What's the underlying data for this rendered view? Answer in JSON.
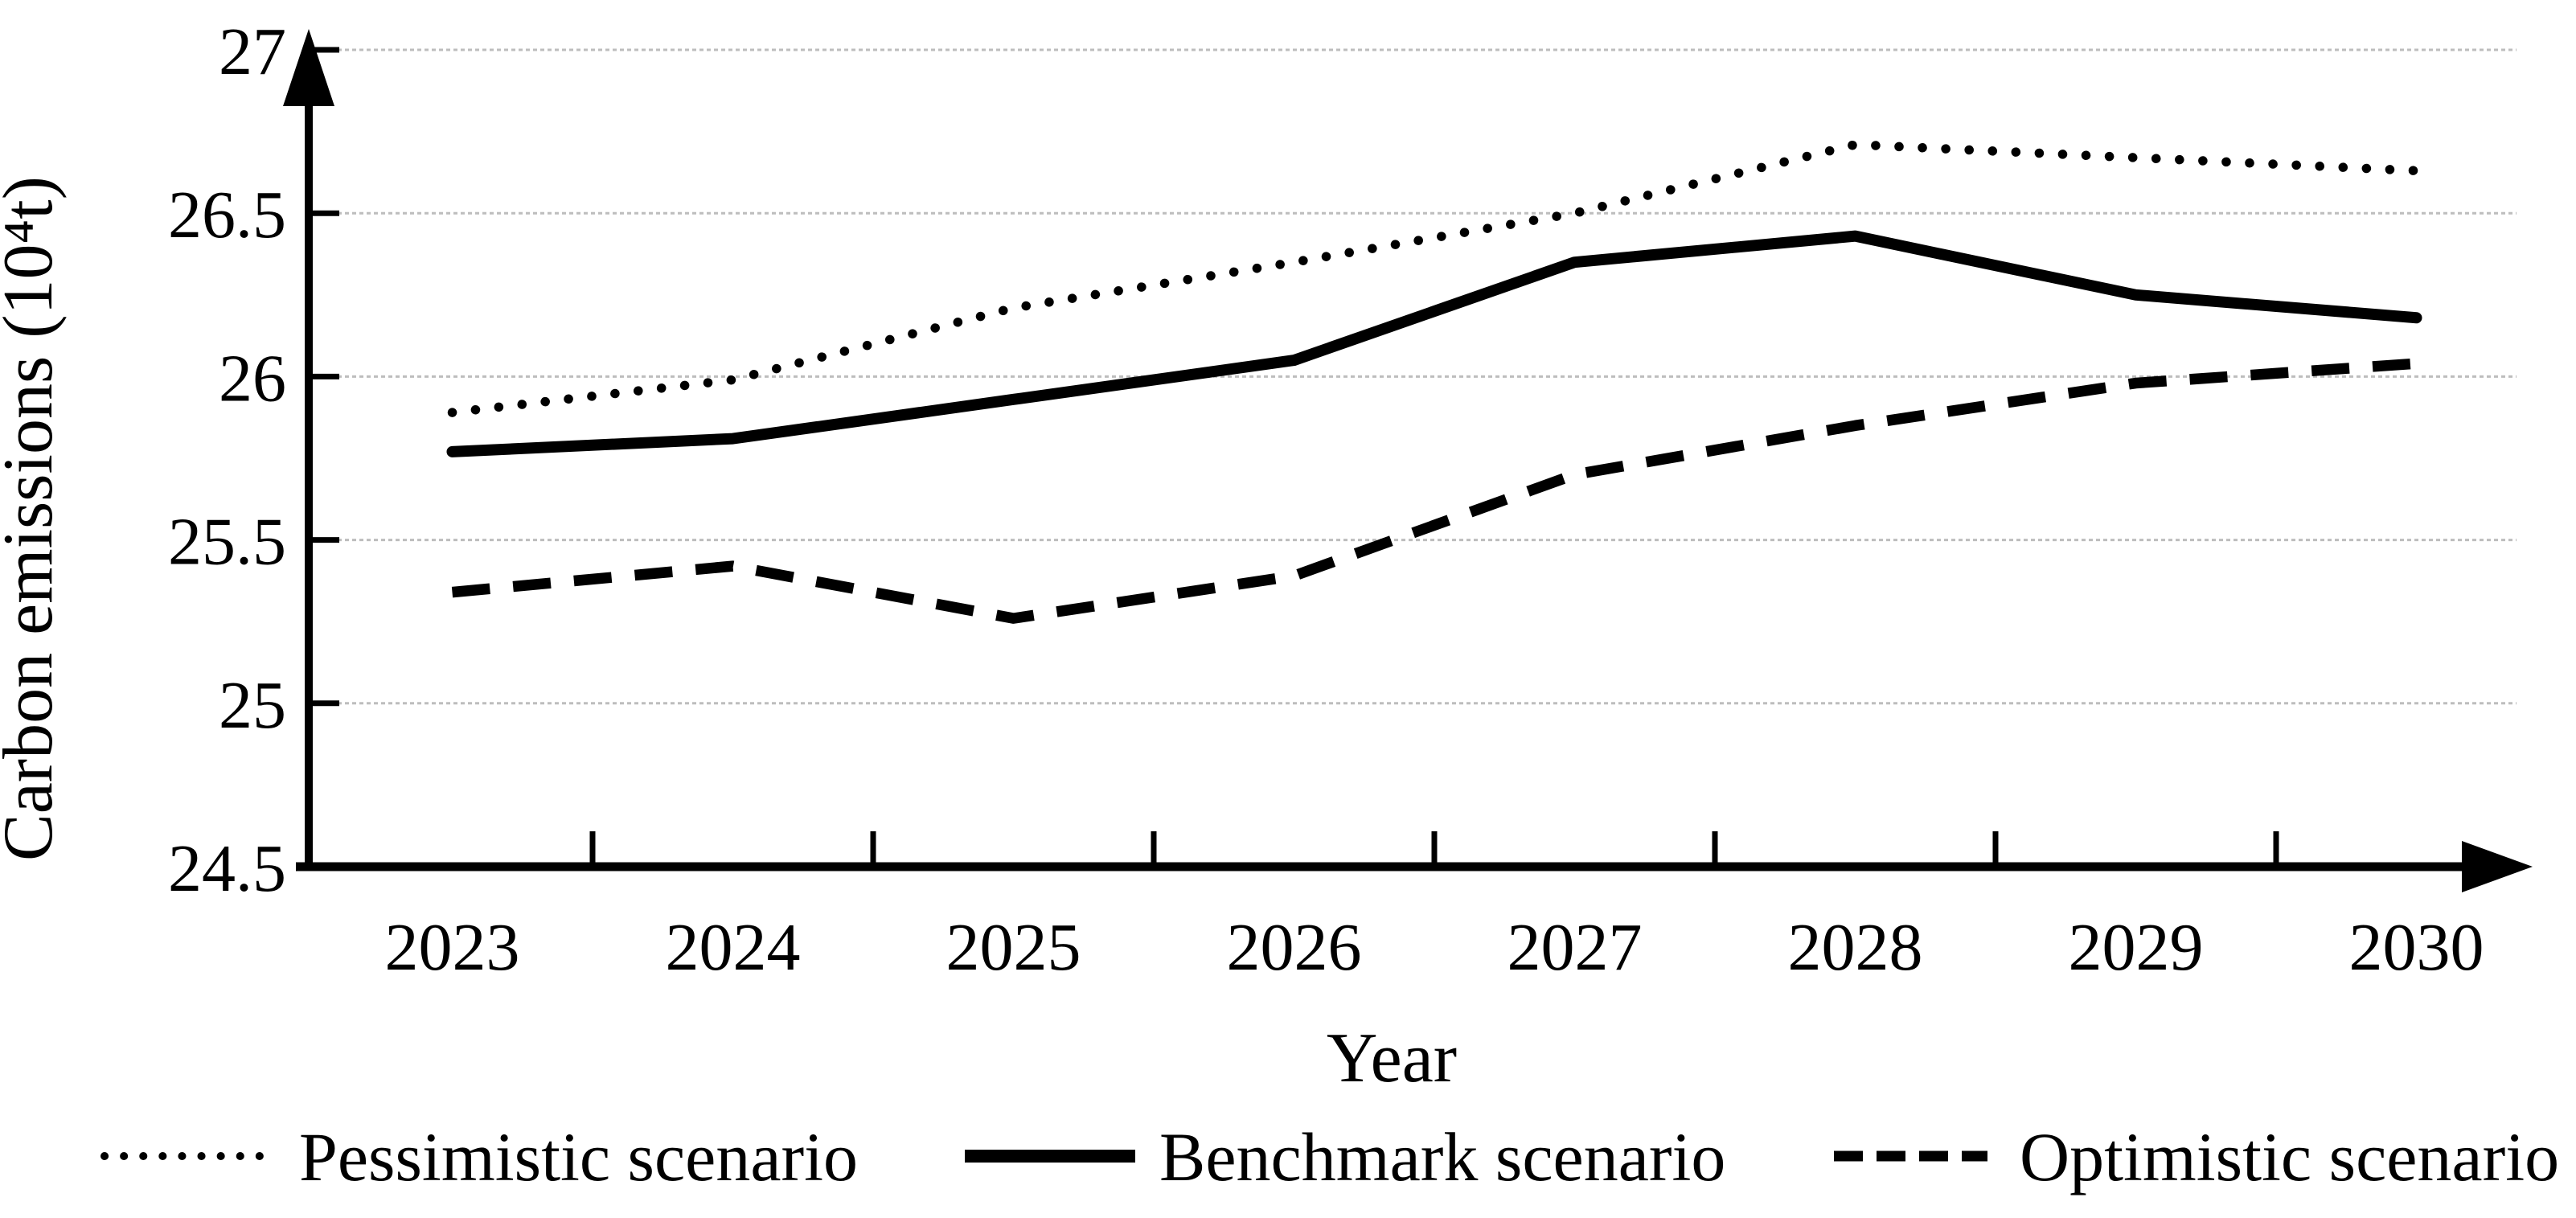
{
  "chart_data": {
    "type": "line",
    "title": "",
    "xlabel": "Year",
    "ylabel": "Carbon emissions (10⁴t)",
    "x": [
      2023,
      2024,
      2025,
      2026,
      2027,
      2028,
      2029,
      2030
    ],
    "series": [
      {
        "name": "Pessimistic scenario",
        "style": "dotted",
        "values": [
          25.89,
          25.99,
          26.21,
          26.35,
          26.5,
          26.71,
          26.67,
          26.63
        ]
      },
      {
        "name": "Benchmark scenario",
        "style": "solid",
        "values": [
          25.77,
          25.81,
          25.93,
          26.05,
          26.35,
          26.43,
          26.25,
          26.18
        ]
      },
      {
        "name": "Optimistic scenario",
        "style": "dashed",
        "values": [
          25.34,
          25.42,
          25.26,
          25.39,
          25.7,
          25.85,
          25.98,
          26.04
        ]
      }
    ],
    "ylim": [
      24.5,
      27
    ],
    "yticks": [
      24.5,
      25,
      25.5,
      26,
      26.5,
      27
    ],
    "grid": true,
    "legend_position": "bottom"
  },
  "colors": {
    "line": "#000000",
    "grid": "#bdbdbd",
    "text": "#000000",
    "background": "#ffffff"
  }
}
